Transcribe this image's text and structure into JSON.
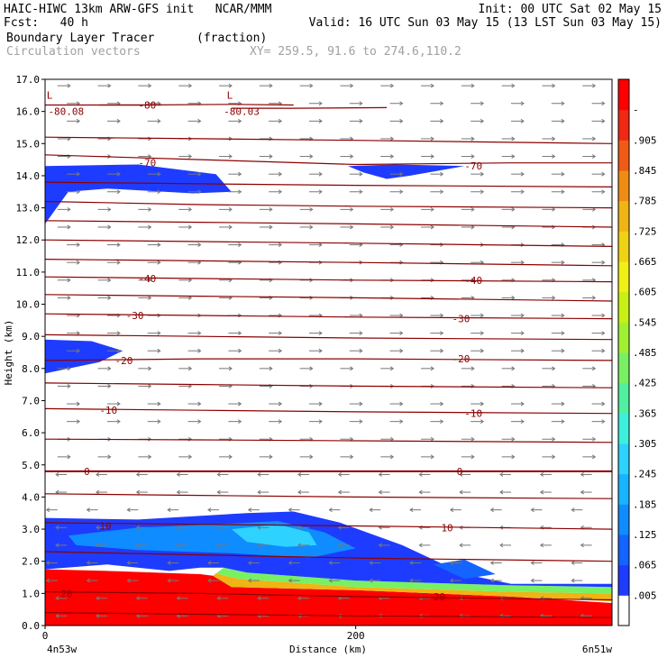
{
  "header": {
    "line1_left": "HAIC-HIWC 13km ARW-GFS init   NCAR/MMM",
    "line1_right": "Init: 00 UTC Sat 02 May 15",
    "line2_left": "Fcst:   40 h",
    "line2_right": "Valid: 16 UTC Sun 03 May 15 (13 LST Sun 03 May 15)",
    "line3_field": "Boundary Layer Tracer",
    "line3_units": "(fraction)",
    "line4_field": "Circulation vectors",
    "line4_xy": "XY= 259.5, 91.6 to 274.6,110.2"
  },
  "chart_data": {
    "type": "heatmap",
    "title": "Boundary Layer Tracer",
    "units": "(fraction)",
    "xlabel": "Distance (km)",
    "ylabel": "Height (km)",
    "xlim": [
      0,
      365
    ],
    "ylim": [
      0,
      17
    ],
    "x_ticks": [
      {
        "value": 0,
        "label": "0"
      },
      {
        "value": 200,
        "label": "200"
      }
    ],
    "x_end_labels": {
      "left": "4n53w",
      "right": "6n51w"
    },
    "y_ticks": [
      "0.0",
      "1.0",
      "2.0",
      "3.0",
      "4.0",
      "5.0",
      "6.0",
      "7.0",
      "8.0",
      "9.0",
      "10.0",
      "11.0",
      "12.0",
      "13.0",
      "14.0",
      "15.0",
      "16.0",
      "17.0"
    ],
    "colorbar": {
      "labels": [
        ".005",
        ".065",
        ".125",
        ".185",
        ".245",
        ".305",
        ".365",
        ".425",
        ".485",
        ".545",
        ".605",
        ".665",
        ".725",
        ".785",
        ".845",
        ".905",
        "-"
      ],
      "colors": [
        "#ffffff",
        "#1e3cff",
        "#1464ff",
        "#0f8cff",
        "#19b4ff",
        "#2dd2ff",
        "#3cf0dc",
        "#50f0a0",
        "#78f064",
        "#a0f032",
        "#c8f014",
        "#f0f014",
        "#f0d214",
        "#f0b414",
        "#f08c14",
        "#f05a14",
        "#f02814",
        "#ff0000"
      ]
    },
    "tracer_regions": [
      {
        "name": "surface",
        "color": "#ff0000",
        "points": [
          [
            0,
            0
          ],
          [
            0,
            1.75
          ],
          [
            40,
            1.7
          ],
          [
            100,
            1.6
          ],
          [
            108,
            1.55
          ],
          [
            120,
            1.2
          ],
          [
            200,
            1.1
          ],
          [
            300,
            0.9
          ],
          [
            365,
            0.7
          ],
          [
            365,
            0
          ]
        ]
      },
      {
        "name": "surface-edge",
        "color": "#f0b414",
        "points": [
          [
            108,
            1.55
          ],
          [
            120,
            1.2
          ],
          [
            200,
            1.1
          ],
          [
            300,
            0.9
          ],
          [
            365,
            0.75
          ],
          [
            365,
            1.0
          ],
          [
            300,
            1.05
          ],
          [
            200,
            1.2
          ],
          [
            125,
            1.45
          ],
          [
            110,
            1.62
          ]
        ]
      },
      {
        "name": "surface-green",
        "color": "#78f064",
        "points": [
          [
            110,
            1.62
          ],
          [
            125,
            1.45
          ],
          [
            200,
            1.2
          ],
          [
            300,
            1.05
          ],
          [
            365,
            1.0
          ],
          [
            365,
            1.2
          ],
          [
            300,
            1.25
          ],
          [
            200,
            1.4
          ],
          [
            130,
            1.65
          ],
          [
            115,
            1.8
          ]
        ]
      },
      {
        "name": "low-layer-outer",
        "color": "#1e3cff",
        "points": [
          [
            0,
            1.75
          ],
          [
            0,
            3.35
          ],
          [
            60,
            3.3
          ],
          [
            130,
            3.5
          ],
          [
            160,
            3.55
          ],
          [
            190,
            3.2
          ],
          [
            230,
            2.5
          ],
          [
            270,
            1.6
          ],
          [
            300,
            1.3
          ],
          [
            365,
            1.3
          ],
          [
            365,
            1.2
          ],
          [
            300,
            1.25
          ],
          [
            200,
            1.4
          ],
          [
            130,
            1.65
          ],
          [
            115,
            1.8
          ],
          [
            100,
            1.8
          ],
          [
            80,
            1.7
          ],
          [
            40,
            1.9
          ]
        ]
      },
      {
        "name": "low-layer-mid",
        "color": "#0f8cff",
        "points": [
          [
            15,
            2.8
          ],
          [
            60,
            3.05
          ],
          [
            110,
            3.15
          ],
          [
            150,
            3.25
          ],
          [
            180,
            2.9
          ],
          [
            200,
            2.4
          ],
          [
            170,
            2.1
          ],
          [
            120,
            2.25
          ],
          [
            60,
            2.35
          ],
          [
            20,
            2.5
          ]
        ]
      },
      {
        "name": "low-layer-core",
        "color": "#2dd2ff",
        "points": [
          [
            120,
            3.0
          ],
          [
            150,
            3.15
          ],
          [
            170,
            2.9
          ],
          [
            175,
            2.5
          ],
          [
            155,
            2.45
          ],
          [
            130,
            2.6
          ]
        ]
      },
      {
        "name": "low-layer-blob",
        "color": "#1464ff",
        "points": [
          [
            250,
            1.9
          ],
          [
            270,
            2.05
          ],
          [
            290,
            1.6
          ],
          [
            270,
            1.45
          ]
        ]
      },
      {
        "name": "upper-left-blob",
        "color": "#1e3cff",
        "points": [
          [
            0,
            14.3
          ],
          [
            60,
            14.35
          ],
          [
            110,
            14.05
          ],
          [
            120,
            13.5
          ],
          [
            95,
            13.45
          ],
          [
            40,
            13.6
          ],
          [
            15,
            13.5
          ],
          [
            0,
            12.5
          ]
        ]
      },
      {
        "name": "upper-mid-blob",
        "color": "#1e3cff",
        "points": [
          [
            195,
            14.3
          ],
          [
            225,
            14.35
          ],
          [
            270,
            14.3
          ],
          [
            235,
            14.0
          ],
          [
            220,
            13.9
          ],
          [
            205,
            14.1
          ]
        ]
      },
      {
        "name": "mid-left-blob",
        "color": "#1e3cff",
        "points": [
          [
            0,
            8.9
          ],
          [
            30,
            8.85
          ],
          [
            50,
            8.55
          ],
          [
            35,
            8.2
          ],
          [
            0,
            7.85
          ]
        ]
      }
    ],
    "temperature_contours": [
      {
        "label": "-80.08",
        "points": [
          [
            0,
            16.2
          ],
          [
            30,
            16.2
          ],
          [
            60,
            16.2
          ],
          [
            120,
            16.22
          ],
          [
            160,
            16.2
          ]
        ]
      },
      {
        "label": "-80.03",
        "points": [
          [
            120,
            16.1
          ],
          [
            160,
            16.1
          ],
          [
            220,
            16.12
          ]
        ]
      },
      {
        "label": "-80",
        "points": [
          [
            35,
            16.2
          ],
          [
            75,
            16.2
          ]
        ]
      },
      {
        "label": "-70",
        "points": [
          [
            0,
            14.65
          ],
          [
            100,
            14.5
          ],
          [
            200,
            14.35
          ],
          [
            300,
            14.4
          ],
          [
            365,
            14.4
          ]
        ]
      },
      {
        "label": "",
        "points": [
          [
            0,
            15.2
          ],
          [
            100,
            15.15
          ],
          [
            200,
            15.1
          ],
          [
            365,
            15.0
          ]
        ]
      },
      {
        "label": "",
        "points": [
          [
            0,
            13.8
          ],
          [
            100,
            13.75
          ],
          [
            200,
            13.7
          ],
          [
            365,
            13.65
          ]
        ]
      },
      {
        "label": "",
        "points": [
          [
            0,
            13.2
          ],
          [
            100,
            13.1
          ],
          [
            200,
            13.05
          ],
          [
            365,
            13.0
          ]
        ]
      },
      {
        "label": "",
        "points": [
          [
            0,
            12.6
          ],
          [
            100,
            12.55
          ],
          [
            200,
            12.5
          ],
          [
            365,
            12.4
          ]
        ]
      },
      {
        "label": "",
        "points": [
          [
            0,
            12.0
          ],
          [
            100,
            11.95
          ],
          [
            200,
            11.9
          ],
          [
            365,
            11.8
          ]
        ]
      },
      {
        "label": "",
        "points": [
          [
            0,
            11.4
          ],
          [
            100,
            11.35
          ],
          [
            200,
            11.3
          ],
          [
            365,
            11.2
          ]
        ]
      },
      {
        "label": "-40",
        "points": [
          [
            0,
            10.85
          ],
          [
            100,
            10.8
          ],
          [
            200,
            10.75
          ],
          [
            365,
            10.7
          ]
        ]
      },
      {
        "label": "",
        "points": [
          [
            0,
            10.3
          ],
          [
            100,
            10.25
          ],
          [
            200,
            10.2
          ],
          [
            365,
            10.1
          ]
        ]
      },
      {
        "label": "-30",
        "points": [
          [
            0,
            9.7
          ],
          [
            100,
            9.65
          ],
          [
            200,
            9.6
          ],
          [
            365,
            9.55
          ]
        ]
      },
      {
        "label": "",
        "points": [
          [
            0,
            9.05
          ],
          [
            100,
            9.0
          ],
          [
            200,
            8.95
          ],
          [
            365,
            8.9
          ]
        ]
      },
      {
        "label": "-20",
        "points": [
          [
            0,
            8.25
          ],
          [
            100,
            8.3
          ],
          [
            200,
            8.3
          ],
          [
            365,
            8.25
          ]
        ]
      },
      {
        "label": "",
        "points": [
          [
            0,
            7.55
          ],
          [
            100,
            7.5
          ],
          [
            200,
            7.45
          ],
          [
            365,
            7.4
          ]
        ]
      },
      {
        "label": "-10",
        "points": [
          [
            0,
            6.75
          ],
          [
            100,
            6.7
          ],
          [
            200,
            6.65
          ],
          [
            365,
            6.6
          ]
        ]
      },
      {
        "label": "",
        "points": [
          [
            0,
            5.8
          ],
          [
            100,
            5.78
          ],
          [
            200,
            5.75
          ],
          [
            365,
            5.7
          ]
        ]
      },
      {
        "label": "0",
        "points": [
          [
            0,
            4.8
          ],
          [
            100,
            4.8
          ],
          [
            200,
            4.8
          ],
          [
            365,
            4.8
          ]
        ]
      },
      {
        "label": "",
        "points": [
          [
            0,
            4.1
          ],
          [
            100,
            4.05
          ],
          [
            200,
            4.0
          ],
          [
            365,
            3.95
          ]
        ]
      },
      {
        "label": "10",
        "points": [
          [
            0,
            3.2
          ],
          [
            100,
            3.15
          ],
          [
            200,
            3.1
          ],
          [
            365,
            3.0
          ]
        ]
      },
      {
        "label": "",
        "points": [
          [
            0,
            2.3
          ],
          [
            100,
            2.2
          ],
          [
            200,
            2.1
          ],
          [
            365,
            2.0
          ]
        ]
      },
      {
        "label": "20",
        "points": [
          [
            0,
            1.05
          ],
          [
            100,
            1.0
          ],
          [
            200,
            0.9
          ],
          [
            365,
            0.8
          ]
        ]
      },
      {
        "label": "",
        "points": [
          [
            0,
            0.4
          ],
          [
            100,
            0.35
          ],
          [
            200,
            0.3
          ],
          [
            365,
            0.25
          ]
        ]
      }
    ],
    "contour_label_positions": [
      {
        "text": "-80.08",
        "x": 2,
        "y": 16.0
      },
      {
        "text": "-80.03",
        "x": 115,
        "y": 16.0
      },
      {
        "text": "-80",
        "x": 60,
        "y": 16.2
      },
      {
        "text": "-70",
        "x": 60,
        "y": 14.4
      },
      {
        "text": "-70",
        "x": 270,
        "y": 14.3
      },
      {
        "text": "-40",
        "x": 60,
        "y": 10.8
      },
      {
        "text": "-40",
        "x": 270,
        "y": 10.75
      },
      {
        "text": "-30",
        "x": 52,
        "y": 9.65
      },
      {
        "text": "-30",
        "x": 262,
        "y": 9.55
      },
      {
        "text": "-20",
        "x": 45,
        "y": 8.25
      },
      {
        "text": "-20",
        "x": 262,
        "y": 8.3
      },
      {
        "text": "-10",
        "x": 35,
        "y": 6.7
      },
      {
        "text": "-10",
        "x": 270,
        "y": 6.6
      },
      {
        "text": "0",
        "x": 25,
        "y": 4.8
      },
      {
        "text": "0",
        "x": 265,
        "y": 4.8
      },
      {
        "text": "10",
        "x": 35,
        "y": 3.1
      },
      {
        "text": "10",
        "x": 255,
        "y": 3.05
      },
      {
        "text": "20",
        "x": 10,
        "y": 1.0
      },
      {
        "text": "20",
        "x": 250,
        "y": 0.9
      }
    ],
    "low_markers": [
      {
        "text": "L",
        "x": 1,
        "y": 16.4
      },
      {
        "text": "L",
        "x": 117,
        "y": 16.4
      }
    ],
    "vectors": {
      "upper_dir": "east",
      "lower_dir": "west",
      "reversal_height": 4.8
    }
  }
}
